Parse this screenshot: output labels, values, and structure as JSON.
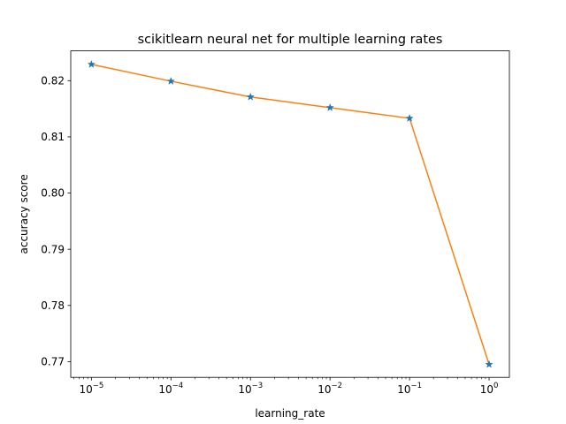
{
  "chart_data": {
    "type": "line",
    "title": "scikitlearn neural net for multiple learning rates",
    "xlabel": "learning_rate",
    "ylabel": "accuracy score",
    "xscale": "log",
    "xlim": [
      5.5e-06,
      1.8
    ],
    "ylim": [
      0.7672,
      0.8253
    ],
    "x_ticks": [
      {
        "value": 1e-05,
        "base": "10",
        "exp": "−5"
      },
      {
        "value": 0.0001,
        "base": "10",
        "exp": "−4"
      },
      {
        "value": 0.001,
        "base": "10",
        "exp": "−3"
      },
      {
        "value": 0.01,
        "base": "10",
        "exp": "−2"
      },
      {
        "value": 0.1,
        "base": "10",
        "exp": "−1"
      },
      {
        "value": 1,
        "base": "10",
        "exp": "0"
      }
    ],
    "y_ticks": [
      {
        "value": 0.77,
        "label": "0.77"
      },
      {
        "value": 0.78,
        "label": "0.78"
      },
      {
        "value": 0.79,
        "label": "0.79"
      },
      {
        "value": 0.8,
        "label": "0.80"
      },
      {
        "value": 0.81,
        "label": "0.81"
      },
      {
        "value": 0.82,
        "label": "0.82"
      }
    ],
    "grid": false,
    "series": [
      {
        "x": [
          1e-05,
          0.0001,
          0.001,
          0.01,
          0.1,
          1
        ],
        "y": [
          0.8229,
          0.8199,
          0.8171,
          0.8152,
          0.8133,
          0.7695
        ],
        "line_color": "#ff7f0e",
        "marker_color": "#1f77b4",
        "marker": "star"
      }
    ]
  }
}
